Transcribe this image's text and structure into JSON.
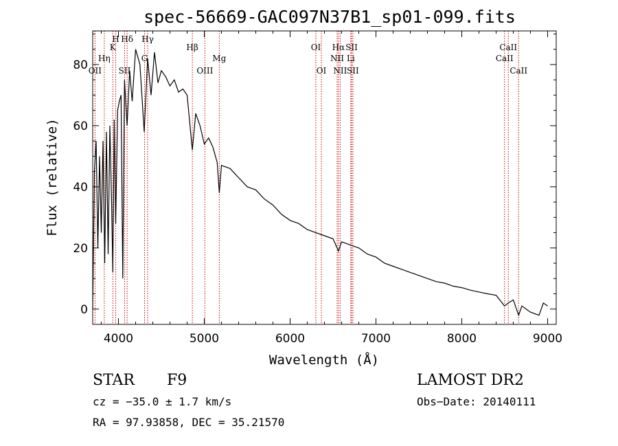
{
  "chart_data": {
    "type": "line",
    "title": "spec-56669-GAC097N37B1_sp01-099.fits",
    "xlabel": "Wavelength (Å)",
    "ylabel": "Flux (relative)",
    "xlim": [
      3700,
      9100
    ],
    "ylim": [
      -5,
      91
    ],
    "x_ticks": [
      4000,
      5000,
      6000,
      7000,
      8000,
      9000
    ],
    "x_tick_labels": [
      "4000",
      "5000",
      "6000",
      "7000",
      "8000",
      "9000"
    ],
    "y_ticks": [
      0,
      20,
      40,
      60,
      80
    ],
    "y_tick_labels": [
      "0",
      "20",
      "40",
      "60",
      "80"
    ],
    "grid": false,
    "series": [
      {
        "x": [
          3700,
          3720,
          3740,
          3760,
          3780,
          3800,
          3820,
          3840,
          3860,
          3880,
          3900,
          3920,
          3934,
          3950,
          3968,
          3990,
          4010,
          4030,
          4050,
          4070,
          4101,
          4130,
          4160,
          4200,
          4250,
          4300,
          4340,
          4380,
          4420,
          4460,
          4500,
          4550,
          4600,
          4650,
          4700,
          4750,
          4800,
          4861,
          4900,
          4950,
          5000,
          5050,
          5100,
          5150,
          5175,
          5200,
          5300,
          5400,
          5500,
          5600,
          5700,
          5800,
          5900,
          6000,
          6100,
          6200,
          6300,
          6400,
          6500,
          6563,
          6600,
          6700,
          6800,
          6900,
          7000,
          7100,
          7200,
          7300,
          7400,
          7500,
          7600,
          7700,
          7800,
          7900,
          8000,
          8100,
          8200,
          8300,
          8400,
          8498,
          8542,
          8600,
          8662,
          8700,
          8800,
          8900,
          8950,
          9000
        ],
        "y": [
          0,
          45,
          55,
          20,
          50,
          25,
          55,
          15,
          58,
          18,
          60,
          35,
          12,
          62,
          28,
          65,
          68,
          70,
          10,
          75,
          60,
          78,
          68,
          85,
          80,
          58,
          82,
          70,
          84,
          74,
          78,
          76,
          73,
          75,
          71,
          72,
          70,
          52,
          64,
          60,
          54,
          56,
          53,
          48,
          38,
          47,
          46,
          43,
          40,
          39,
          36,
          34,
          31,
          29,
          28,
          26,
          25,
          24,
          23,
          19,
          22,
          21,
          20,
          18,
          17,
          15,
          14,
          13,
          12,
          11,
          10,
          9,
          8.5,
          7.5,
          7,
          6.2,
          5.6,
          5,
          4.5,
          1,
          2,
          3,
          -2,
          1,
          -1,
          -2,
          2,
          1
        ]
      }
    ],
    "line_markers": [
      {
        "label": "OII",
        "wavelength": 3727,
        "row": 3
      },
      {
        "label": "Hη",
        "wavelength": 3835,
        "row": 2
      },
      {
        "label": "K",
        "wavelength": 3934,
        "row": 1
      },
      {
        "label": "SII",
        "wavelength": 4072,
        "row": 3
      },
      {
        "label": "H",
        "wavelength": 3968,
        "row": 0
      },
      {
        "label": "Hδ",
        "wavelength": 4101,
        "row": 0
      },
      {
        "label": "G",
        "wavelength": 4304,
        "row": 2
      },
      {
        "label": "Hγ",
        "wavelength": 4340,
        "row": 0
      },
      {
        "label": "Hβ",
        "wavelength": 4861,
        "row": 1
      },
      {
        "label": "OIII",
        "wavelength": 5007,
        "row": 3
      },
      {
        "label": "Mg",
        "wavelength": 5175,
        "row": 2
      },
      {
        "label": "OI",
        "wavelength": 6300,
        "row": 1
      },
      {
        "label": "OI",
        "wavelength": 6364,
        "row": 3
      },
      {
        "label": "NII",
        "wavelength": 6548,
        "row": 2
      },
      {
        "label": "Hα",
        "wavelength": 6563,
        "row": 1
      },
      {
        "label": "NII",
        "wavelength": 6583,
        "row": 3
      },
      {
        "label": "Li",
        "wavelength": 6707,
        "row": 2
      },
      {
        "label": "SII",
        "wavelength": 6716,
        "row": 1
      },
      {
        "label": "SII",
        "wavelength": 6731,
        "row": 3
      },
      {
        "label": "CaII",
        "wavelength": 8498,
        "row": 2
      },
      {
        "label": "CaII",
        "wavelength": 8542,
        "row": 1
      },
      {
        "label": "CaII",
        "wavelength": 8662,
        "row": 3
      }
    ],
    "marker_color": "#cc0000",
    "line_color": "#000000"
  },
  "info": {
    "object_class": "STAR",
    "subclass": "F9",
    "survey": "LAMOST DR2",
    "redshift_text": "cz = −35.0 ± 1.7 km/s",
    "obs_date_text": "Obs−Date: 20140111",
    "coords_text": "RA =  97.93858, DEC =  35.21570"
  }
}
